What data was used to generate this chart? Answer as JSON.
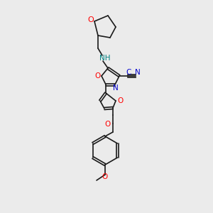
{
  "bg_color": "#ebebeb",
  "bond_color": "#1a1a1a",
  "atom_colors": {
    "O": "#ff0000",
    "N": "#0000cc",
    "NH": "#008080",
    "C": "#1a1a1a"
  },
  "font_size": 7.5,
  "bond_width": 1.2
}
